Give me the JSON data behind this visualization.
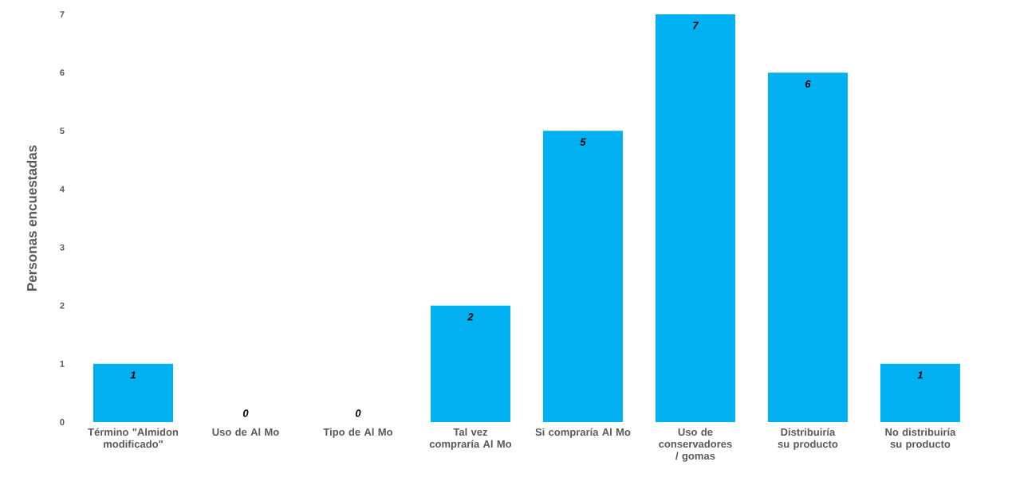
{
  "chart_data": {
    "type": "bar",
    "ylabel": "Personas encuestadas",
    "categories": [
      "Término \"Almidon modificado\"",
      "Uso de Al Mo",
      "Tipo de Al Mo",
      "Tal vez compraría Al Mo",
      "Si compraría Al Mo",
      "Uso de conservadores / gomas",
      "Distribuiría su producto",
      "No distribuiría su producto"
    ],
    "values": [
      1,
      0,
      0,
      2,
      5,
      7,
      6,
      1
    ],
    "color": "#00b0f0",
    "ylim": [
      0,
      7
    ],
    "yticks": [
      0,
      1,
      2,
      3,
      4,
      5,
      6,
      7
    ],
    "data_labels": true
  }
}
